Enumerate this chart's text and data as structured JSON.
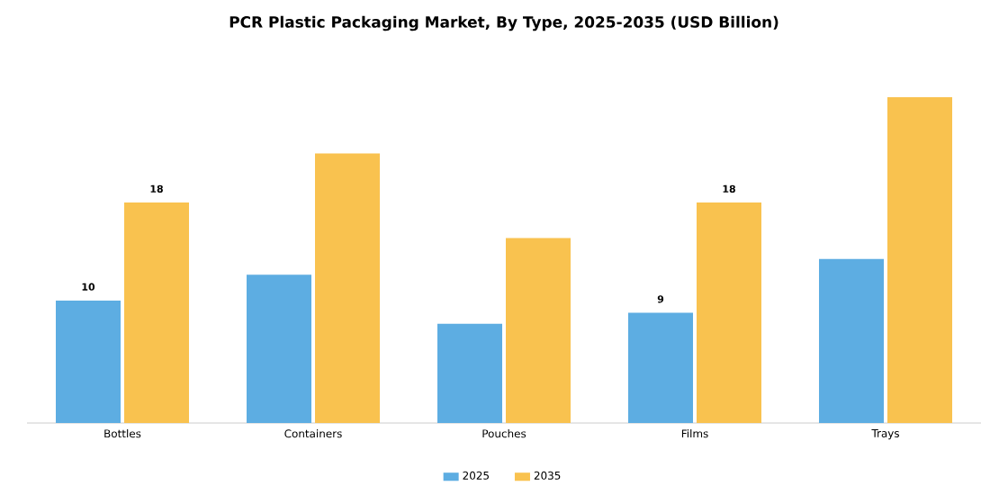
{
  "chart_data": {
    "type": "bar",
    "title": "PCR Plastic Packaging Market, By Type, 2025-2035 (USD Billion)",
    "categories": [
      "Bottles",
      "Containers",
      "Pouches",
      "Films",
      "Trays"
    ],
    "series": [
      {
        "name": "2025",
        "color": "#5dade2",
        "values": [
          10,
          12.1,
          8.1,
          9,
          13.4
        ],
        "value_labels": [
          "10",
          null,
          null,
          "9",
          null
        ]
      },
      {
        "name": "2035",
        "color": "#f9c24f",
        "values": [
          18,
          22,
          15.1,
          18,
          26.6
        ],
        "value_labels": [
          "18",
          null,
          null,
          "18",
          null
        ]
      }
    ],
    "legend": "bottom"
  }
}
